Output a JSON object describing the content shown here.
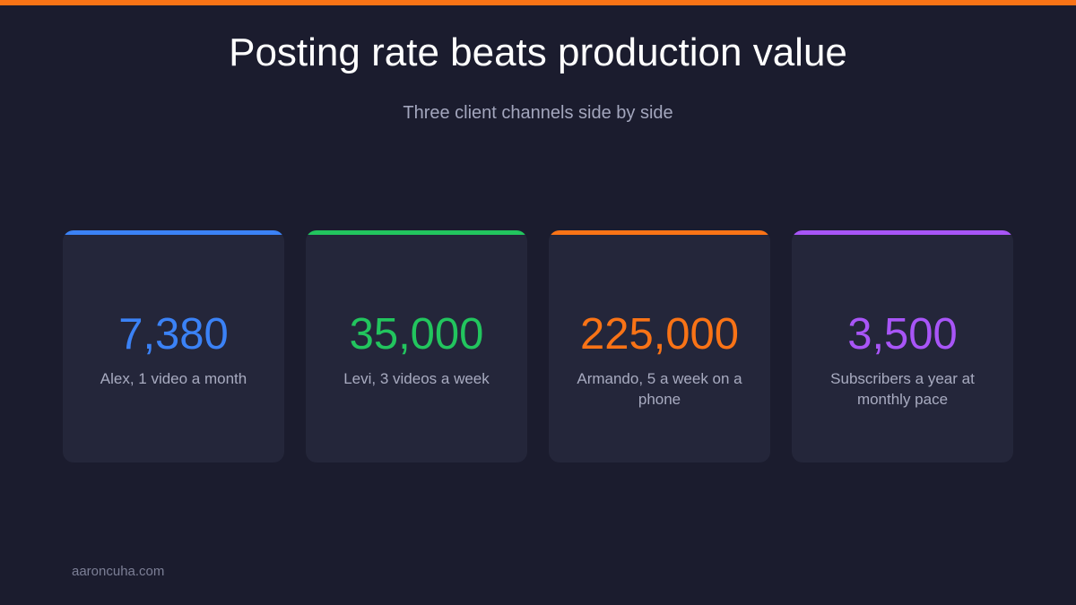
{
  "header": {
    "title": "Posting rate beats production value",
    "subtitle": "Three client channels side by side"
  },
  "colors": {
    "top_bar": "#f97316",
    "background": "#1b1c2e",
    "card_bg": "#24263a"
  },
  "cards": [
    {
      "value": "7,380",
      "label": "Alex, 1 video a month",
      "color": "#3b82f6"
    },
    {
      "value": "35,000",
      "label": "Levi, 3 videos a week",
      "color": "#22c55e"
    },
    {
      "value": "225,000",
      "label": "Armando, 5 a week on a phone",
      "color": "#f97316"
    },
    {
      "value": "3,500",
      "label": "Subscribers a year at monthly pace",
      "color": "#a855f7"
    }
  ],
  "footer": {
    "site": "aaroncuha.com"
  }
}
